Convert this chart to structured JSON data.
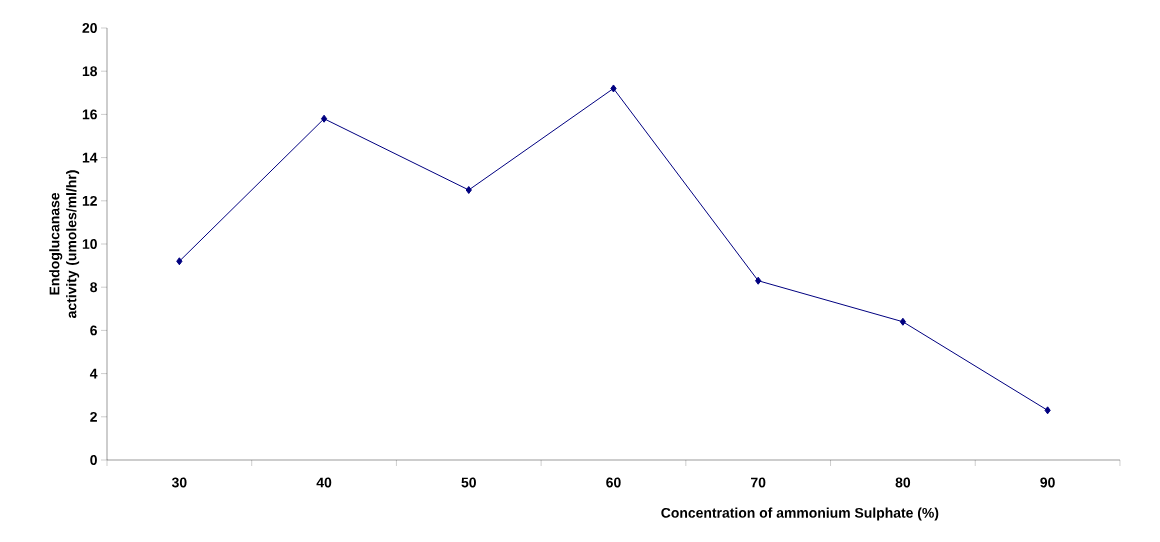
{
  "chart_data": {
    "type": "line",
    "xlabel": "Concentration of ammonium Sulphate (%)",
    "ylabel": "Endoglucanase activity (umoles/ml/hr)",
    "categories": [
      "30",
      "40",
      "50",
      "60",
      "70",
      "80",
      "90"
    ],
    "values": [
      9.2,
      15.8,
      12.5,
      17.2,
      8.3,
      6.4,
      2.3
    ],
    "color": "#000080",
    "marker": "diamond",
    "line_style": "solid",
    "ylim": [
      0,
      20
    ],
    "yticks": [
      0,
      2,
      4,
      6,
      8,
      10,
      12,
      14,
      16,
      18,
      20
    ],
    "grid": false
  }
}
